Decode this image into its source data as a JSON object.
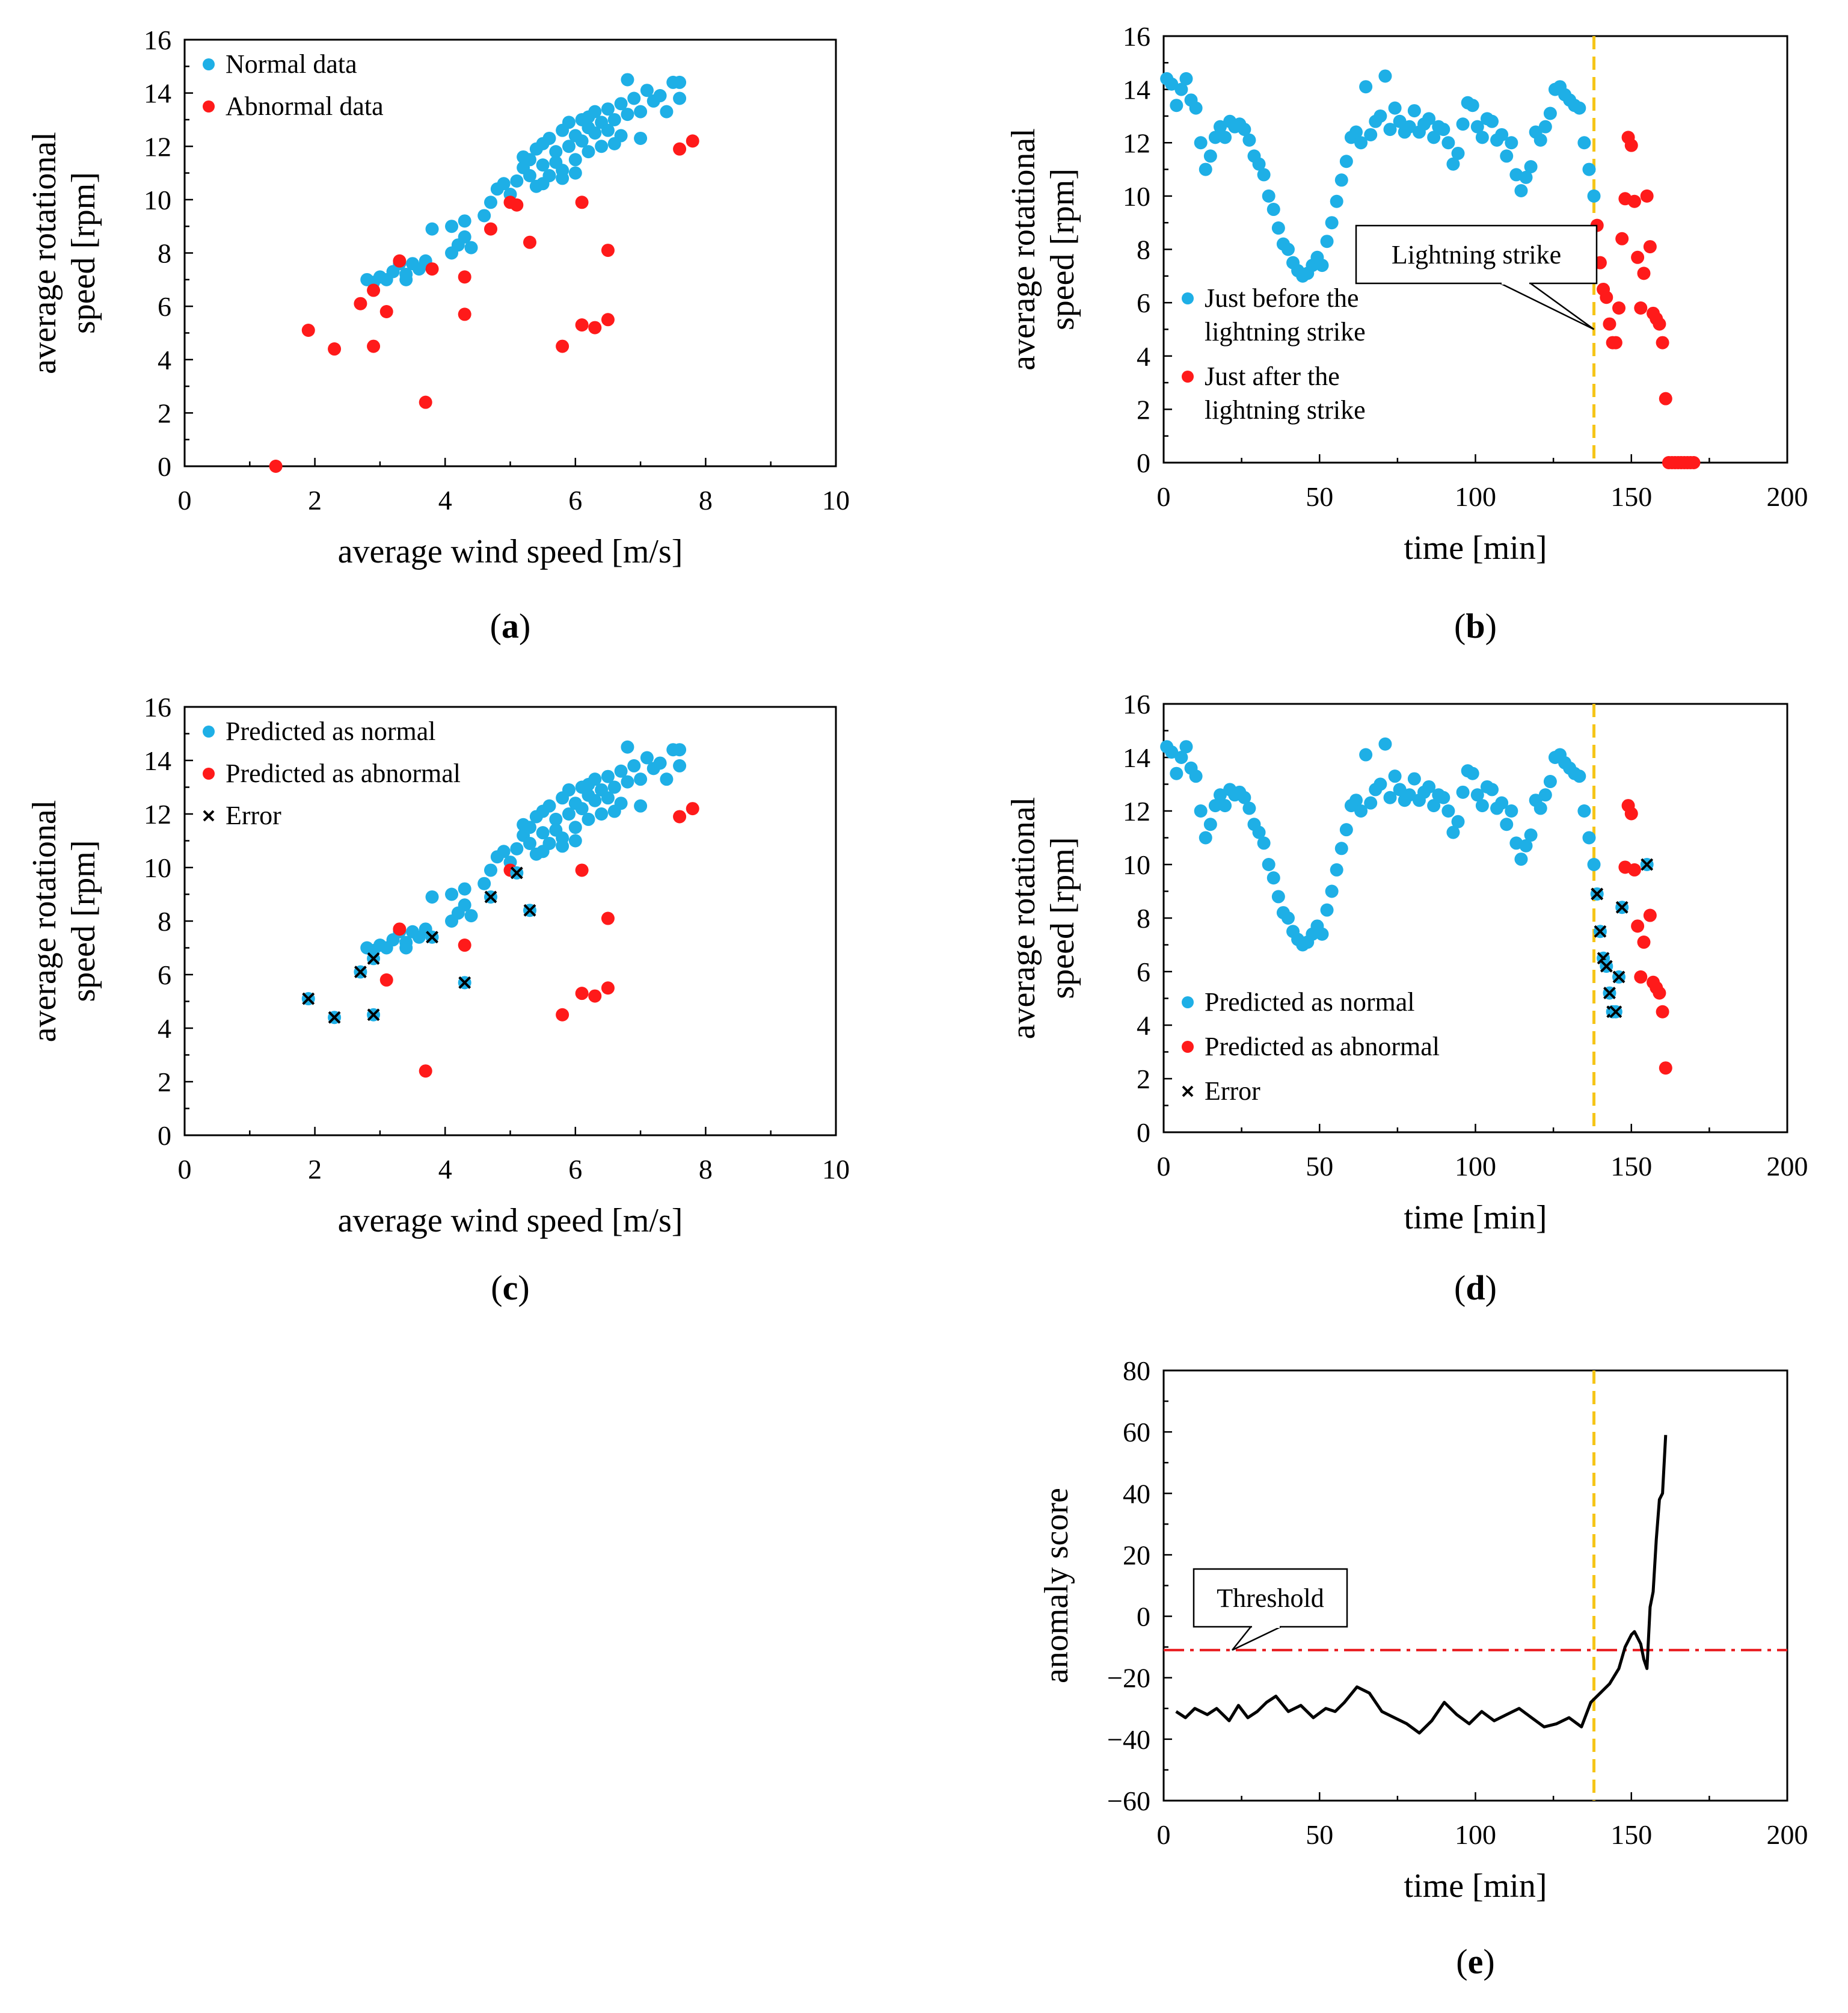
{
  "colors": {
    "normal": "#1EAFE6",
    "abnormal": "#FF1A1A",
    "error_marker": "#000000",
    "strike_line": "#F5C518",
    "threshold_line": "#E8181C",
    "score_line": "#000000"
  },
  "chart_data": [
    {
      "id": "a",
      "caption": "a",
      "type": "scatter",
      "xlabel": "average  wind speed [m/s]",
      "ylabel_lines": [
        "average  rotational",
        "speed [rpm]"
      ],
      "xlim": [
        0,
        10
      ],
      "ylim": [
        0,
        16
      ],
      "xticks": [
        "0",
        "2",
        "4",
        "6",
        "8",
        "10"
      ],
      "yticks": [
        "0",
        "2",
        "4",
        "6",
        "8",
        "10",
        "12",
        "14",
        "16"
      ],
      "legend": [
        {
          "label": "Normal data",
          "color": "normal",
          "marker": "dot"
        },
        {
          "label": "Abnormal data",
          "color": "abnormal",
          "marker": "dot"
        }
      ],
      "series": [
        {
          "name": "Normal data",
          "color": "normal",
          "points": [
            [
              2.8,
              7.0
            ],
            [
              2.9,
              6.9
            ],
            [
              3.0,
              7.1
            ],
            [
              3.1,
              7.0
            ],
            [
              3.2,
              7.3
            ],
            [
              3.3,
              7.6
            ],
            [
              3.4,
              7.2
            ],
            [
              3.5,
              7.6
            ],
            [
              3.6,
              7.4
            ],
            [
              3.7,
              7.7
            ],
            [
              3.8,
              8.9
            ],
            [
              3.4,
              7.0
            ],
            [
              4.1,
              8.0
            ],
            [
              4.2,
              8.3
            ],
            [
              4.3,
              8.6
            ],
            [
              4.4,
              8.2
            ],
            [
              4.1,
              9.0
            ],
            [
              4.3,
              9.2
            ],
            [
              4.6,
              9.4
            ],
            [
              4.7,
              9.9
            ],
            [
              4.8,
              10.4
            ],
            [
              4.9,
              10.6
            ],
            [
              5.0,
              10.2
            ],
            [
              5.1,
              10.7
            ],
            [
              5.2,
              11.2
            ],
            [
              5.3,
              10.9
            ],
            [
              5.3,
              11.5
            ],
            [
              5.4,
              11.9
            ],
            [
              5.5,
              12.1
            ],
            [
              5.5,
              11.3
            ],
            [
              5.6,
              12.3
            ],
            [
              5.7,
              11.8
            ],
            [
              5.8,
              12.6
            ],
            [
              5.8,
              11.1
            ],
            [
              5.9,
              12.0
            ],
            [
              5.9,
              12.9
            ],
            [
              6.0,
              12.4
            ],
            [
              6.0,
              11.5
            ],
            [
              6.1,
              13.0
            ],
            [
              6.1,
              12.2
            ],
            [
              6.2,
              12.7
            ],
            [
              6.2,
              11.8
            ],
            [
              6.3,
              13.3
            ],
            [
              6.3,
              12.5
            ],
            [
              6.4,
              12.9
            ],
            [
              6.4,
              12.0
            ],
            [
              6.5,
              13.4
            ],
            [
              6.5,
              12.6
            ],
            [
              6.6,
              13.0
            ],
            [
              6.7,
              13.6
            ],
            [
              6.7,
              12.4
            ],
            [
              6.8,
              14.5
            ],
            [
              6.8,
              13.2
            ],
            [
              6.9,
              13.8
            ],
            [
              7.0,
              13.3
            ],
            [
              7.0,
              12.3
            ],
            [
              7.1,
              14.1
            ],
            [
              7.2,
              13.7
            ],
            [
              7.3,
              13.9
            ],
            [
              7.4,
              13.3
            ],
            [
              7.5,
              14.4
            ],
            [
              7.6,
              14.4
            ],
            [
              7.6,
              13.8
            ],
            [
              5.4,
              10.5
            ],
            [
              5.6,
              10.9
            ],
            [
              5.7,
              11.4
            ],
            [
              6.0,
              11.0
            ],
            [
              5.2,
              11.6
            ],
            [
              5.8,
              10.8
            ],
            [
              6.6,
              12.1
            ],
            [
              5.5,
              10.6
            ],
            [
              6.2,
              13.1
            ]
          ]
        },
        {
          "name": "Abnormal data",
          "color": "abnormal",
          "points": [
            [
              1.4,
              0.0
            ],
            [
              1.9,
              5.1
            ],
            [
              2.3,
              4.4
            ],
            [
              2.7,
              6.1
            ],
            [
              2.9,
              6.6
            ],
            [
              2.9,
              4.5
            ],
            [
              3.1,
              5.8
            ],
            [
              3.3,
              7.7
            ],
            [
              3.7,
              2.4
            ],
            [
              3.8,
              7.4
            ],
            [
              4.3,
              7.1
            ],
            [
              4.3,
              5.7
            ],
            [
              4.7,
              8.9
            ],
            [
              5.0,
              9.9
            ],
            [
              5.1,
              9.8
            ],
            [
              5.3,
              8.4
            ],
            [
              5.8,
              4.5
            ],
            [
              6.1,
              9.9
            ],
            [
              6.1,
              5.3
            ],
            [
              6.3,
              5.2
            ],
            [
              6.5,
              8.1
            ],
            [
              6.5,
              5.5
            ],
            [
              7.6,
              11.9
            ],
            [
              7.8,
              12.2
            ]
          ]
        }
      ]
    },
    {
      "id": "b",
      "caption": "b",
      "type": "scatter",
      "xlabel": "time [min]",
      "ylabel_lines": [
        "average  rotational",
        "speed [rpm]"
      ],
      "xlim": [
        0,
        200
      ],
      "ylim": [
        0,
        16
      ],
      "xticks": [
        "0",
        "50",
        "100",
        "150",
        "200"
      ],
      "yticks": [
        "0",
        "2",
        "4",
        "6",
        "8",
        "10",
        "12",
        "14",
        "16"
      ],
      "strike_time": 138,
      "annotation": {
        "text": "Lightning strike",
        "target": [
          138,
          5.0
        ]
      },
      "legend": [
        {
          "label_lines": [
            "Just before the",
            "lightning strike"
          ],
          "color": "normal",
          "marker": "dot"
        },
        {
          "label_lines": [
            "Just after the",
            "lightning strike"
          ],
          "color": "abnormal",
          "marker": "dot"
        }
      ],
      "before_values": [
        14.4,
        14.2,
        13.4,
        14.0,
        14.4,
        13.6,
        13.3,
        12.0,
        11.0,
        11.5,
        12.2,
        12.6,
        12.2,
        12.8,
        12.6,
        12.7,
        12.5,
        12.1,
        11.5,
        11.2,
        10.8,
        10.0,
        9.5,
        8.8,
        8.2,
        8.0,
        7.5,
        7.2,
        7.0,
        7.1,
        7.4,
        7.7,
        7.4,
        8.3,
        9.0,
        9.8,
        10.6,
        11.3,
        12.2,
        12.4,
        12.0,
        14.1,
        12.3,
        12.8,
        13.0,
        14.5,
        12.5,
        13.3,
        12.8,
        12.4,
        12.6,
        13.2,
        12.4,
        12.7,
        12.9,
        12.2,
        12.6,
        12.5,
        12.0,
        11.2,
        11.6,
        12.7,
        13.5,
        13.4,
        12.6,
        12.2,
        12.9,
        12.8,
        12.1,
        12.3,
        11.5,
        12.0,
        10.8,
        10.2,
        10.7,
        11.1,
        12.4,
        12.1,
        12.6,
        13.1,
        14.0,
        14.1,
        13.8,
        13.6,
        13.4,
        13.3,
        12.0,
        11.0,
        10.0
      ],
      "after_points": [
        [
          139,
          8.9
        ],
        [
          140,
          7.5
        ],
        [
          141,
          6.5
        ],
        [
          142,
          6.2
        ],
        [
          143,
          5.2
        ],
        [
          144,
          4.5
        ],
        [
          145,
          4.5
        ],
        [
          146,
          5.8
        ],
        [
          147,
          8.4
        ],
        [
          148,
          9.9
        ],
        [
          149,
          12.2
        ],
        [
          150,
          11.9
        ],
        [
          151,
          9.8
        ],
        [
          152,
          7.7
        ],
        [
          153,
          5.8
        ],
        [
          154,
          7.1
        ],
        [
          155,
          10.0
        ],
        [
          156,
          8.1
        ],
        [
          157,
          5.6
        ],
        [
          158,
          5.4
        ],
        [
          159,
          5.2
        ],
        [
          160,
          4.5
        ],
        [
          161,
          2.4
        ],
        [
          162,
          0
        ],
        [
          163,
          0
        ],
        [
          164,
          0
        ],
        [
          165,
          0
        ],
        [
          166,
          0
        ],
        [
          167,
          0
        ],
        [
          168,
          0
        ],
        [
          169,
          0
        ],
        [
          170,
          0
        ]
      ]
    },
    {
      "id": "c",
      "caption": "c",
      "type": "scatter",
      "xlabel": "average  wind speed [m/s]",
      "ylabel_lines": [
        "average  rotational",
        "speed [rpm]"
      ],
      "xlim": [
        0,
        10
      ],
      "ylim": [
        0,
        16
      ],
      "xticks": [
        "0",
        "2",
        "4",
        "6",
        "8",
        "10"
      ],
      "yticks": [
        "0",
        "2",
        "4",
        "6",
        "8",
        "10",
        "12",
        "14",
        "16"
      ],
      "legend": [
        {
          "label": "Predicted as normal",
          "color": "normal",
          "marker": "dot"
        },
        {
          "label": "Predicted as abnormal",
          "color": "abnormal",
          "marker": "dot"
        },
        {
          "label": "Error",
          "color": "error_marker",
          "marker": "x"
        }
      ],
      "errors": [
        [
          1.9,
          5.1
        ],
        [
          2.3,
          4.4
        ],
        [
          2.7,
          6.1
        ],
        [
          2.9,
          6.6
        ],
        [
          2.9,
          4.5
        ],
        [
          3.8,
          7.4
        ],
        [
          4.3,
          5.7
        ],
        [
          4.7,
          8.9
        ],
        [
          5.1,
          9.8
        ],
        [
          5.3,
          8.4
        ]
      ],
      "predicted_abnormal": [
        [
          3.1,
          5.8
        ],
        [
          3.3,
          7.7
        ],
        [
          3.7,
          2.4
        ],
        [
          4.3,
          7.1
        ],
        [
          5.0,
          9.9
        ],
        [
          6.1,
          9.9
        ],
        [
          6.1,
          5.3
        ],
        [
          6.3,
          5.2
        ],
        [
          6.5,
          8.1
        ],
        [
          6.5,
          5.5
        ],
        [
          5.8,
          4.5
        ],
        [
          7.6,
          11.9
        ],
        [
          7.8,
          12.2
        ]
      ]
    },
    {
      "id": "d",
      "caption": "d",
      "type": "scatter",
      "xlabel": "time [min]",
      "ylabel_lines": [
        "average  rotational",
        "speed [rpm]"
      ],
      "xlim": [
        0,
        200
      ],
      "ylim": [
        0,
        16
      ],
      "xticks": [
        "0",
        "50",
        "100",
        "150",
        "200"
      ],
      "yticks": [
        "0",
        "2",
        "4",
        "6",
        "8",
        "10",
        "12",
        "14",
        "16"
      ],
      "strike_time": 138,
      "legend": [
        {
          "label": "Predicted as normal",
          "color": "normal",
          "marker": "dot"
        },
        {
          "label": "Predicted as abnormal",
          "color": "abnormal",
          "marker": "dot"
        },
        {
          "label": "Error",
          "color": "error_marker",
          "marker": "x"
        }
      ],
      "errors": [
        [
          139,
          8.9
        ],
        [
          140,
          7.5
        ],
        [
          141,
          6.5
        ],
        [
          142,
          6.2
        ],
        [
          143,
          5.2
        ],
        [
          144,
          4.5
        ],
        [
          145,
          4.5
        ],
        [
          146,
          5.8
        ],
        [
          147,
          8.4
        ],
        [
          155,
          10.0
        ]
      ],
      "predicted_abnormal": [
        [
          148,
          9.9
        ],
        [
          149,
          12.2
        ],
        [
          150,
          11.9
        ],
        [
          151,
          9.8
        ],
        [
          152,
          7.7
        ],
        [
          153,
          5.8
        ],
        [
          154,
          7.1
        ],
        [
          156,
          8.1
        ],
        [
          157,
          5.6
        ],
        [
          158,
          5.4
        ],
        [
          159,
          5.2
        ],
        [
          160,
          4.5
        ],
        [
          161,
          2.4
        ]
      ]
    },
    {
      "id": "e",
      "caption": "e",
      "type": "line",
      "xlabel": "time [min]",
      "ylabel_lines": [
        "anomaly score"
      ],
      "xlim": [
        0,
        200
      ],
      "ylim": [
        -60,
        80
      ],
      "xticks": [
        "0",
        "50",
        "100",
        "150",
        "200"
      ],
      "yticks": [
        "−60",
        "−40",
        "−20",
        "0",
        "20",
        "40",
        "60",
        "80"
      ],
      "strike_time": 138,
      "threshold": -11,
      "annotation": {
        "text": "Threshold",
        "target": [
          22,
          -11
        ]
      },
      "series": [
        {
          "name": "anomaly score",
          "x": [
            4,
            7,
            10,
            14,
            17,
            21,
            24,
            27,
            30,
            33,
            36,
            40,
            44,
            48,
            52,
            55,
            58,
            62,
            66,
            70,
            74,
            78,
            82,
            86,
            90,
            94,
            98,
            102,
            106,
            110,
            114,
            118,
            122,
            126,
            130,
            134,
            137,
            140,
            143,
            146,
            148,
            150,
            151,
            152,
            153,
            154,
            155,
            156,
            157,
            158,
            159,
            160,
            161
          ],
          "y": [
            -31,
            -33,
            -30,
            -32,
            -30,
            -34,
            -29,
            -33,
            -31,
            -28,
            -26,
            -31,
            -29,
            -33,
            -30,
            -31,
            -28,
            -23,
            -25,
            -31,
            -33,
            -35,
            -38,
            -34,
            -28,
            -32,
            -35,
            -31,
            -34,
            -32,
            -30,
            -33,
            -36,
            -35,
            -33,
            -36,
            -28,
            -25,
            -22,
            -17,
            -10,
            -6,
            -5,
            -7,
            -9,
            -14,
            -17,
            3,
            8,
            25,
            38,
            40,
            59
          ]
        }
      ]
    }
  ]
}
